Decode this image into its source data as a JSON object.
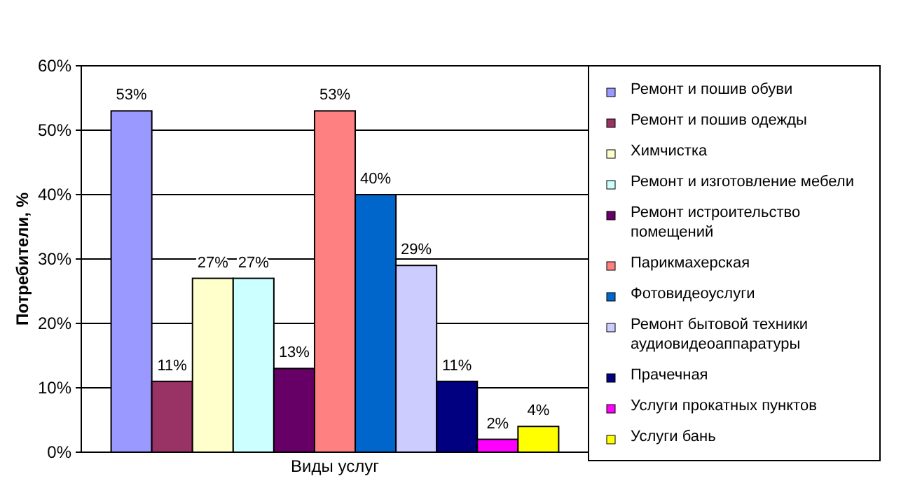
{
  "chart_data": {
    "type": "bar",
    "categories": [
      "Виды услуг"
    ],
    "ylabel": "Потребители, %",
    "ylim": [
      0,
      60
    ],
    "yticks": [
      {
        "value": 0,
        "label": "0%"
      },
      {
        "value": 10,
        "label": "10%"
      },
      {
        "value": 20,
        "label": "20%"
      },
      {
        "value": 30,
        "label": "30%"
      },
      {
        "value": 40,
        "label": "40%"
      },
      {
        "value": 50,
        "label": "50%"
      },
      {
        "value": 60,
        "label": "60%"
      }
    ],
    "grid": "y",
    "legend": "right",
    "series": [
      {
        "name": "Ремонт и пошив обуви",
        "color": "#9999ff",
        "values": [
          53
        ],
        "value_labels": [
          "53%"
        ]
      },
      {
        "name": "Ремонт и пошив одежды",
        "color": "#993366",
        "values": [
          11
        ],
        "value_labels": [
          "11%"
        ]
      },
      {
        "name": "Химчистка",
        "color": "#ffffcc",
        "values": [
          27
        ],
        "value_labels": [
          "27%"
        ]
      },
      {
        "name": "Ремонт и изготовление мебели",
        "color": "#ccffff",
        "values": [
          27
        ],
        "value_labels": [
          "27%"
        ]
      },
      {
        "name": "Ремонт истроительство помещений",
        "color": "#660066",
        "values": [
          13
        ],
        "value_labels": [
          "13%"
        ]
      },
      {
        "name": "Парикмахерская",
        "color": "#ff8080",
        "values": [
          53
        ],
        "value_labels": [
          "53%"
        ]
      },
      {
        "name": "Фотовидеоуслуги",
        "color": "#0066cc",
        "values": [
          40
        ],
        "value_labels": [
          "40%"
        ]
      },
      {
        "name": "Ремонт бытовой техники аудиовидеоаппаратуры",
        "color": "#ccccff",
        "values": [
          29
        ],
        "value_labels": [
          "29%"
        ]
      },
      {
        "name": "Прачечная",
        "color": "#000080",
        "values": [
          11
        ],
        "value_labels": [
          "11%"
        ]
      },
      {
        "name": "Услуги прокатных пунктов",
        "color": "#ff00ff",
        "values": [
          2
        ],
        "value_labels": [
          "2%"
        ]
      },
      {
        "name": "Услуги бань",
        "color": "#ffff00",
        "values": [
          4
        ],
        "value_labels": [
          "4%"
        ]
      }
    ]
  }
}
